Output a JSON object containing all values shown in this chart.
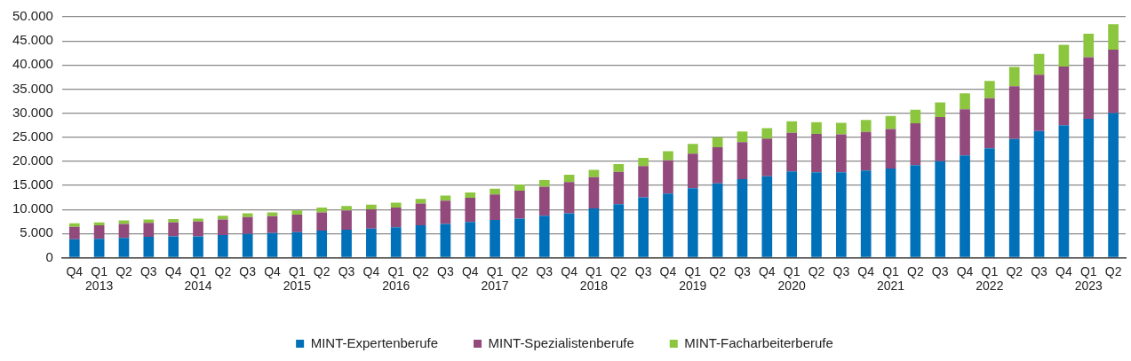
{
  "chart_data": {
    "type": "bar",
    "stacked": true,
    "legend": "bottom",
    "grid": "y",
    "categories": [
      "Q4",
      "Q1\n2013",
      "Q2",
      "Q3",
      "Q4",
      "Q1\n2014",
      "Q2",
      "Q3",
      "Q4",
      "Q1\n2015",
      "Q2",
      "Q3",
      "Q4",
      "Q1\n2016",
      "Q2",
      "Q3",
      "Q4",
      "Q1\n2017",
      "Q2",
      "Q3",
      "Q4",
      "Q1\n2018",
      "Q2",
      "Q3",
      "Q4",
      "Q1\n2019",
      "Q2",
      "Q3",
      "Q4",
      "Q1\n2020",
      "Q2",
      "Q3",
      "Q4",
      "Q1\n2021",
      "Q2",
      "Q3",
      "Q4",
      "Q1\n2022",
      "Q2",
      "Q3",
      "Q4",
      "Q1\n2023",
      "Q2"
    ],
    "ylim": [
      0,
      50000
    ],
    "yticks": [
      {
        "value": 0,
        "label": "0"
      },
      {
        "value": 5000,
        "label": "5.000"
      },
      {
        "value": 10000,
        "label": "10.000"
      },
      {
        "value": 15000,
        "label": "15.000"
      },
      {
        "value": 20000,
        "label": "20.000"
      },
      {
        "value": 25000,
        "label": "25.000"
      },
      {
        "value": 30000,
        "label": "30.000"
      },
      {
        "value": 35000,
        "label": "35.000"
      },
      {
        "value": 40000,
        "label": "40.000"
      },
      {
        "value": 45000,
        "label": "45.000"
      },
      {
        "value": 50000,
        "label": "50.000"
      }
    ],
    "series": [
      {
        "name": "MINT-Expertenberufe",
        "color": "#0070b8",
        "values": [
          3800,
          3900,
          4100,
          4300,
          4400,
          4400,
          4700,
          4900,
          5100,
          5300,
          5600,
          5800,
          6000,
          6300,
          6700,
          7000,
          7400,
          7800,
          8100,
          8700,
          9200,
          10200,
          11100,
          12500,
          13300,
          14400,
          15400,
          16300,
          16900,
          17900,
          17700,
          17700,
          18100,
          18500,
          19200,
          20000,
          21200,
          22700,
          24600,
          26300,
          27500,
          28800,
          30000
        ]
      },
      {
        "name": "MINT-Spezialistenberufe",
        "color": "#924a7c",
        "values": [
          2600,
          2800,
          2900,
          2900,
          2900,
          3100,
          3200,
          3500,
          3500,
          3600,
          3800,
          4000,
          4000,
          4100,
          4500,
          4800,
          5000,
          5300,
          5800,
          6000,
          6500,
          6500,
          6700,
          6500,
          6900,
          7200,
          7500,
          7700,
          7800,
          8000,
          8000,
          7900,
          8000,
          8200,
          8700,
          9200,
          9600,
          10400,
          11000,
          11700,
          12200,
          12800,
          13200
        ]
      },
      {
        "name": "MINT-Facharbeiterberufe",
        "color": "#8cc63f",
        "values": [
          700,
          600,
          700,
          700,
          700,
          600,
          800,
          800,
          800,
          900,
          1000,
          900,
          1000,
          1000,
          1000,
          1100,
          1100,
          1200,
          1300,
          1400,
          1500,
          1500,
          1600,
          1700,
          1900,
          2000,
          2100,
          2200,
          2200,
          2400,
          2400,
          2400,
          2500,
          2700,
          2800,
          3000,
          3300,
          3600,
          4000,
          4300,
          4500,
          4900,
          5300
        ]
      }
    ]
  }
}
